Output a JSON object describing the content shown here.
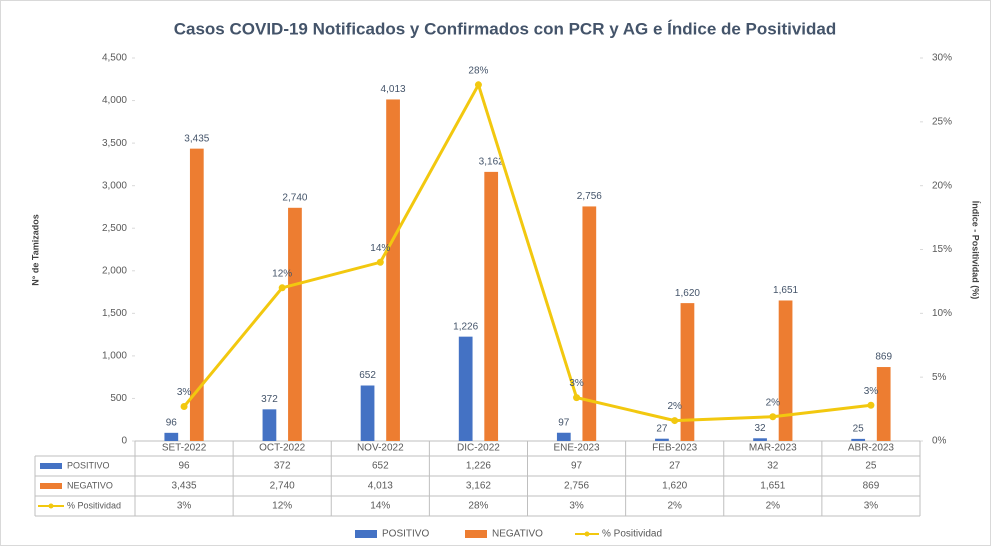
{
  "chart_data": {
    "type": "combo",
    "title": "Casos COVID-19 Notificados y Confirmados con PCR y AG e Índice de Positividad",
    "y_label": "N° de Tamizados",
    "y2_label": "Índice - Positividad (%)",
    "categories": [
      "SET-2022",
      "OCT-2022",
      "NOV-2022",
      "DIC-2022",
      "ENE-2023",
      "FEB-2023",
      "MAR-2023",
      "ABR-2023"
    ],
    "series": [
      {
        "name": "POSITIVO",
        "type": "bar",
        "color": "#4472c4",
        "values": [
          96,
          372,
          652,
          1226,
          97,
          27,
          32,
          25
        ],
        "value_labels": [
          "96",
          "372",
          "652",
          "1,226",
          "97",
          "27",
          "32",
          "25"
        ]
      },
      {
        "name": "NEGATIVO",
        "type": "bar",
        "color": "#ed7d31",
        "values": [
          3435,
          2740,
          4013,
          3162,
          2756,
          1620,
          1651,
          869
        ],
        "value_labels": [
          "3,435",
          "2,740",
          "4,013",
          "3,162",
          "2,756",
          "1,620",
          "1,651",
          "869"
        ]
      },
      {
        "name": "% Positividad",
        "type": "line",
        "axis": "y2",
        "color": "#f2c80f",
        "values": [
          2.7,
          12,
          14,
          27.9,
          3.4,
          1.6,
          1.9,
          2.8
        ],
        "value_labels": [
          "3%",
          "12%",
          "14%",
          "28%",
          "3%",
          "2%",
          "2%",
          "3%"
        ]
      }
    ],
    "ylim": [
      0,
      4500
    ],
    "yticks": [
      0,
      500,
      {
        "value": 1000,
        "label": "1,000"
      },
      {
        "value": 1500,
        "label": "1,500"
      },
      {
        "value": 2000,
        "label": "2,000"
      },
      {
        "value": 2500,
        "label": "2,500"
      },
      {
        "value": 3000,
        "label": "3,000"
      },
      {
        "value": 3500,
        "label": "3,500"
      },
      {
        "value": 4000,
        "label": "4,000"
      },
      {
        "value": 4500,
        "label": "4,500"
      }
    ],
    "y2lim": [
      0,
      30
    ],
    "y2ticks": [
      {
        "value": 0,
        "label": "0%"
      },
      {
        "value": 5,
        "label": "5%"
      },
      {
        "value": 10,
        "label": "10%"
      },
      {
        "value": 15,
        "label": "15%"
      },
      {
        "value": 20,
        "label": "20%"
      },
      {
        "value": 25,
        "label": "25%"
      },
      {
        "value": 30,
        "label": "30%"
      }
    ],
    "legend": "bottom"
  }
}
